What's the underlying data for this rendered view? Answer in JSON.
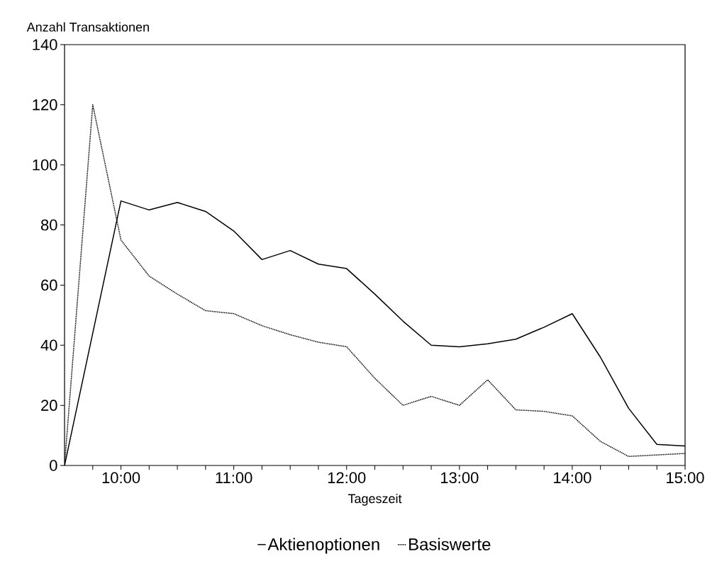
{
  "chart_data": {
    "type": "line",
    "xlabel": "Tageszeit",
    "ylabel": "Anzahl Transaktionen",
    "xlim": [
      9.5,
      15
    ],
    "ylim": [
      0,
      140
    ],
    "xticks": [
      {
        "value": 9.75,
        "label": null
      },
      {
        "value": 10,
        "label": "10:00"
      },
      {
        "value": 10.25,
        "label": null
      },
      {
        "value": 10.5,
        "label": null
      },
      {
        "value": 10.75,
        "label": null
      },
      {
        "value": 11,
        "label": "11:00"
      },
      {
        "value": 11.25,
        "label": null
      },
      {
        "value": 11.5,
        "label": null
      },
      {
        "value": 11.75,
        "label": null
      },
      {
        "value": 12,
        "label": "12:00"
      },
      {
        "value": 12.25,
        "label": null
      },
      {
        "value": 12.5,
        "label": null
      },
      {
        "value": 12.75,
        "label": null
      },
      {
        "value": 13,
        "label": "13:00"
      },
      {
        "value": 13.25,
        "label": null
      },
      {
        "value": 13.5,
        "label": null
      },
      {
        "value": 13.75,
        "label": null
      },
      {
        "value": 14,
        "label": "14:00"
      },
      {
        "value": 14.25,
        "label": null
      },
      {
        "value": 14.5,
        "label": null
      },
      {
        "value": 14.75,
        "label": null
      },
      {
        "value": 15,
        "label": "15:00"
      }
    ],
    "yticks": [
      0,
      20,
      40,
      60,
      80,
      100,
      120,
      140
    ],
    "legend": "bottom",
    "marker": "none",
    "series": [
      {
        "name": "Aktienoptionen",
        "color": "#000000",
        "line_style": "solid",
        "x": [
          9.5,
          10,
          10.25,
          10.5,
          10.75,
          11,
          11.25,
          11.5,
          11.75,
          12,
          12.25,
          12.5,
          12.75,
          13,
          13.25,
          13.5,
          13.75,
          14,
          14.25,
          14.5,
          14.75,
          15
        ],
        "values": [
          0,
          88,
          85,
          87.5,
          84.5,
          78,
          68.5,
          71.5,
          67,
          65.5,
          57,
          48,
          40,
          39.5,
          40.5,
          42,
          46,
          50.5,
          36,
          19,
          7,
          6.5
        ]
      },
      {
        "name": "Basiswerte",
        "color": "#000000",
        "line_style": "dotted",
        "x": [
          9.5,
          9.75,
          10,
          10.25,
          10.5,
          10.75,
          11,
          11.25,
          11.5,
          11.75,
          12,
          12.25,
          12.5,
          12.75,
          13,
          13.25,
          13.5,
          13.75,
          14,
          14.25,
          14.5,
          14.75,
          15
        ],
        "values": [
          0,
          120,
          75,
          63,
          57,
          51.5,
          50.5,
          46.5,
          43.5,
          41,
          39.5,
          29,
          20,
          23,
          20,
          28.5,
          18.5,
          18,
          16.5,
          8,
          3,
          3.5,
          4
        ]
      }
    ]
  }
}
